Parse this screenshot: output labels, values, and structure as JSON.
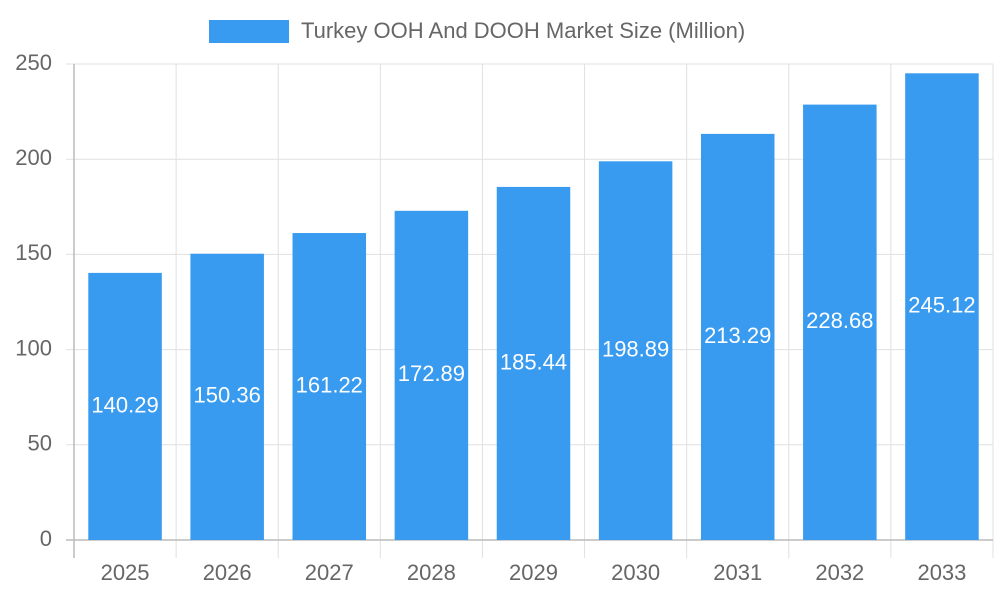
{
  "chart_data": {
    "type": "bar",
    "categories": [
      "2025",
      "2026",
      "2027",
      "2028",
      "2029",
      "2030",
      "2031",
      "2032",
      "2033"
    ],
    "series": [
      {
        "name": "Turkey OOH And DOOH Market Size (Million)",
        "color": "#389bef",
        "values": [
          140.29,
          150.36,
          161.22,
          172.89,
          185.44,
          198.89,
          213.29,
          228.68,
          245.12
        ]
      }
    ],
    "ylim": [
      0,
      250
    ],
    "yticks": [
      0,
      50,
      100,
      150,
      200,
      250
    ],
    "grid": true,
    "legend": "top"
  }
}
